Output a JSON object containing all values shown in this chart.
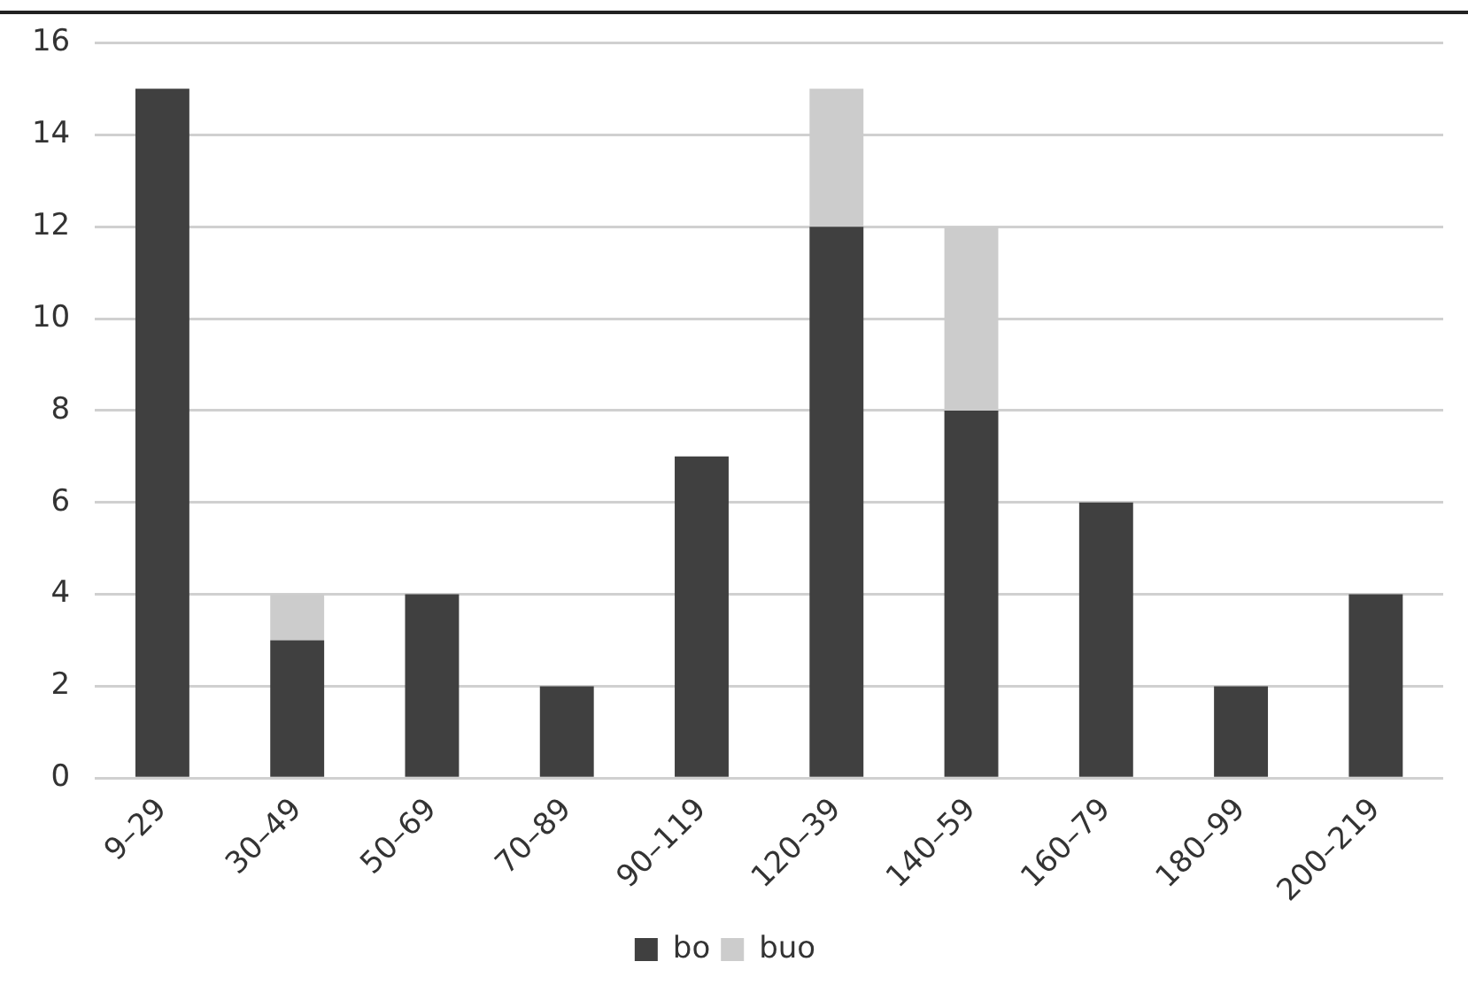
{
  "chart_data": {
    "type": "bar",
    "stacked": true,
    "categories": [
      "9–29",
      "30–49",
      "50–69",
      "70–89",
      "90–119",
      "120–39",
      "140–59",
      "160–79",
      "180–99",
      "200–219"
    ],
    "series": [
      {
        "name": "bo",
        "color": "#404040",
        "values": [
          15,
          3,
          4,
          2,
          7,
          12,
          8,
          6,
          2,
          4
        ]
      },
      {
        "name": "buo",
        "color": "#cccccc",
        "values": [
          0,
          1,
          0,
          0,
          0,
          3,
          4,
          0,
          0,
          0
        ]
      }
    ],
    "ylim": [
      0,
      16
    ],
    "yticks": [
      0,
      2,
      4,
      6,
      8,
      10,
      12,
      14,
      16
    ],
    "grid": "y",
    "legend": "bottom"
  }
}
